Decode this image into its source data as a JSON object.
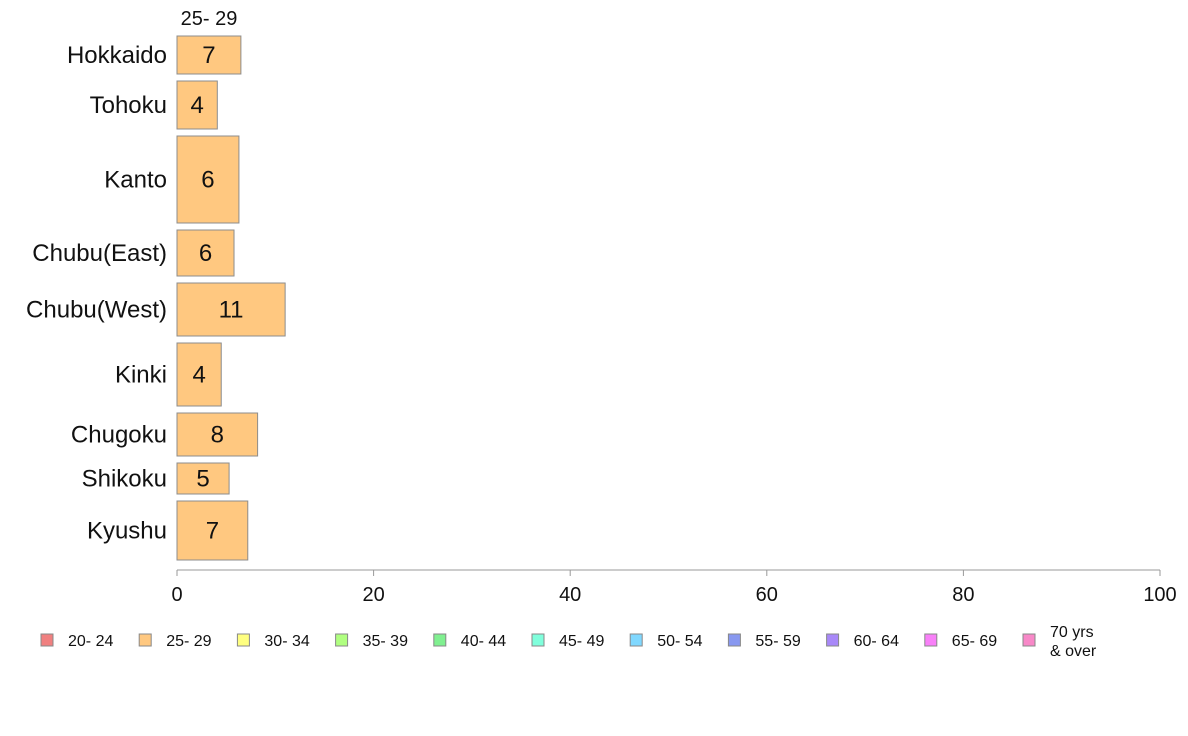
{
  "chart_data": {
    "type": "bar",
    "orientation": "horizontal",
    "stacked": true,
    "series_header": "25- 29",
    "categories": [
      "Hokkaido",
      "Tohoku",
      "Kanto",
      "Chubu(East)",
      "Chubu(West)",
      "Kinki",
      "Chugoku",
      "Shikoku",
      "Kyushu"
    ],
    "series": [
      {
        "name": "25- 29",
        "values": [
          7,
          4,
          6,
          6,
          11,
          4,
          8,
          5,
          7
        ]
      }
    ],
    "bar_values": [
      6.5,
      4.1,
      6.3,
      5.8,
      11.0,
      4.5,
      8.2,
      5.3,
      7.2
    ],
    "category_weights": [
      0.38,
      0.48,
      0.87,
      0.46,
      0.53,
      0.63,
      0.43,
      0.31,
      0.59
    ],
    "xlim": [
      0,
      100
    ],
    "xticks": [
      "0",
      "20",
      "40",
      "60",
      "80",
      "100"
    ],
    "grid": false,
    "legend_position": "bottom",
    "legend": [
      {
        "label": "20- 24",
        "color": "#f08080"
      },
      {
        "label": "25- 29",
        "color": "#ffc880"
      },
      {
        "label": "30- 34",
        "color": "#ffff80"
      },
      {
        "label": "35- 39",
        "color": "#b0ff80"
      },
      {
        "label": "40- 44",
        "color": "#80f090"
      },
      {
        "label": "45- 49",
        "color": "#80ffdc"
      },
      {
        "label": "50- 54",
        "color": "#80d8ff"
      },
      {
        "label": "55- 59",
        "color": "#8898f0"
      },
      {
        "label": "60- 64",
        "color": "#a888f8"
      },
      {
        "label": "65- 69",
        "color": "#f880f8"
      },
      {
        "label": "70 yrs\n& over",
        "color": "#f888c8"
      }
    ]
  }
}
